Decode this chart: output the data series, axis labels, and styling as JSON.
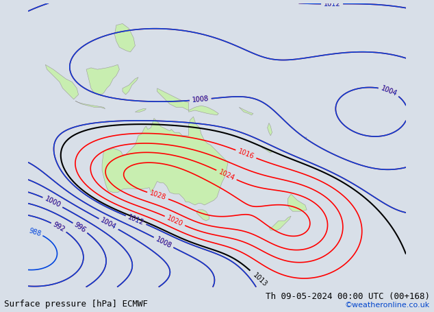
{
  "title_left": "Surface pressure [hPa] ECMWF",
  "title_right": "Th 09-05-2024 00:00 UTC (00+168)",
  "copyright": "©weatheronline.co.uk",
  "background_color": "#d8dfe8",
  "land_color": "#c8eeb0",
  "land_edge": "#999999",
  "title_fontsize": 9,
  "copy_fontsize": 8,
  "lon_min": 90,
  "lon_max": 210,
  "lat_min": -65,
  "lat_max": 25
}
